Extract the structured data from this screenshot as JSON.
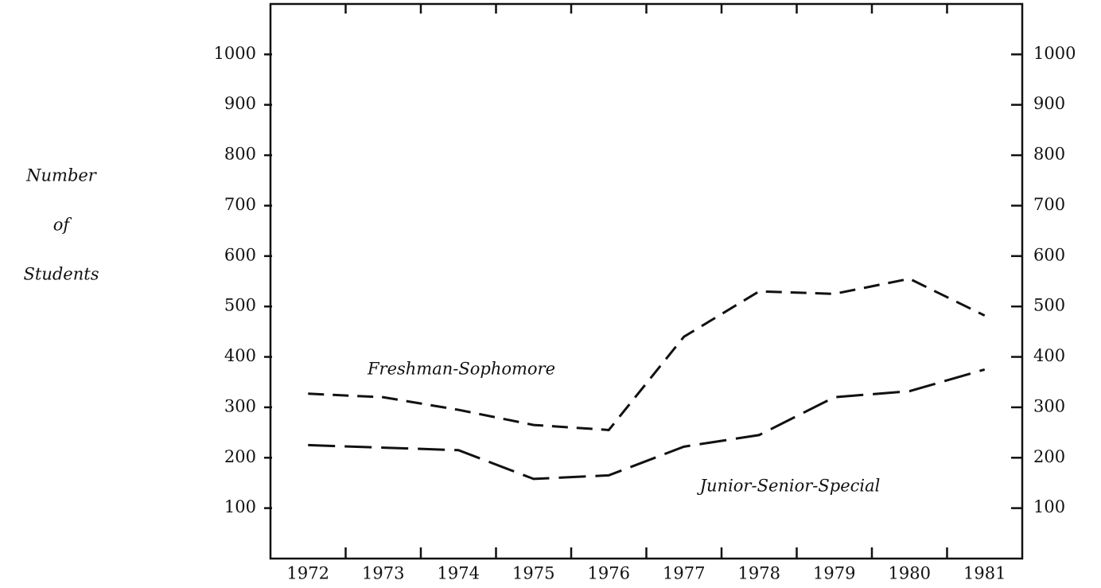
{
  "chart_data": {
    "type": "line",
    "y_label": [
      "Number",
      "of",
      "Students"
    ],
    "categories": [
      "1972",
      "1973",
      "1974",
      "1975",
      "1976",
      "1977",
      "1978",
      "1979",
      "1980",
      "1981"
    ],
    "series": [
      {
        "name": "Freshman-Sophomore",
        "color": "#111111",
        "dash": "20 11",
        "values": [
          327,
          320,
          295,
          265,
          255,
          440,
          530,
          525,
          555,
          482
        ]
      },
      {
        "name": "Junior-Senior-Special",
        "color": "#111111",
        "dash": "34 12",
        "values": [
          225,
          220,
          215,
          158,
          165,
          222,
          245,
          320,
          332,
          375
        ]
      }
    ],
    "ylim": [
      0,
      1100
    ],
    "yticks": [
      100,
      200,
      300,
      400,
      500,
      600,
      700,
      800,
      900,
      1000
    ],
    "grid": false
  }
}
